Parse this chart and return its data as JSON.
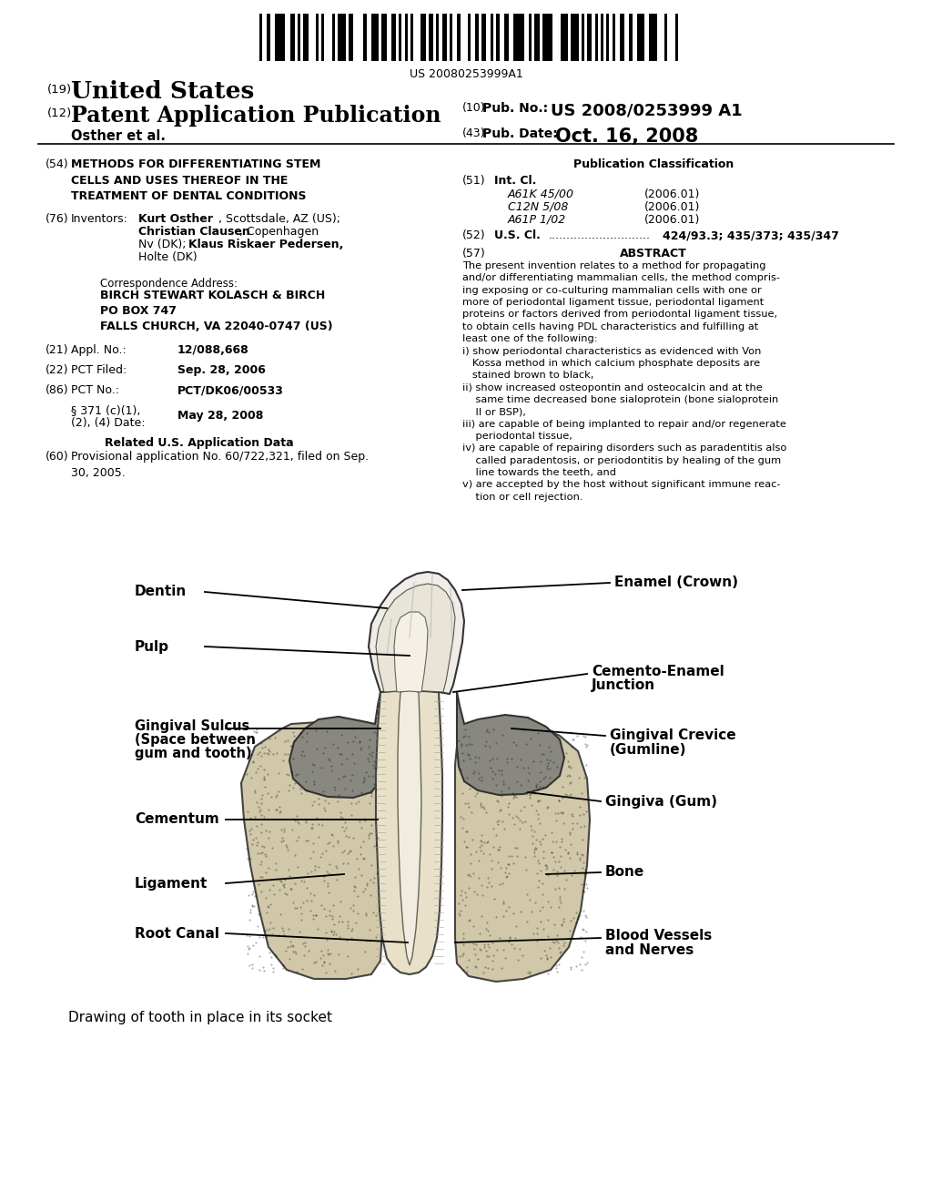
{
  "bg_color": "#ffffff",
  "barcode_text": "US 20080253999A1",
  "header": {
    "number_19": "(19)",
    "united_states": "United States",
    "number_12": "(12)",
    "pat_app_pub": "Patent Application Publication",
    "osther": "Osther et al.",
    "number_10": "(10)",
    "pub_no_label": "Pub. No.:",
    "pub_no_value": "US 2008/0253999 A1",
    "number_43": "(43)",
    "pub_date_label": "Pub. Date:",
    "pub_date_value": "Oct. 16, 2008"
  },
  "left_col": {
    "item54_num": "(54)",
    "item54_title": "METHODS FOR DIFFERENTIATING STEM\nCELLS AND USES THEREOF IN THE\nTREATMENT OF DENTAL CONDITIONS",
    "item76_num": "(76)",
    "item76_label": "Inventors:",
    "item76_bold": "Kurt Osther",
    "item76_text1": ", Scottsdale, AZ (US);",
    "item76_bold2": "Christian Clausen",
    "item76_text2": ", Copenhagen",
    "item76_text3": "Nv (DK);",
    "item76_bold3": "Klaus Riskaer Pedersen,",
    "item76_text4": "Holte (DK)",
    "corr_label": "Correspondence Address:",
    "corr_text": "BIRCH STEWART KOLASCH & BIRCH\nPO BOX 747\nFALLS CHURCH, VA 22040-0747 (US)",
    "item21_num": "(21)",
    "item21_label": "Appl. No.:",
    "item21_value": "12/088,668",
    "item22_num": "(22)",
    "item22_label": "PCT Filed:",
    "item22_value": "Sep. 28, 2006",
    "item86_num": "(86)",
    "item86_label": "PCT No.:",
    "item86_value": "PCT/DK06/00533",
    "item371_label1": "§ 371 (c)(1),",
    "item371_label2": "(2), (4) Date:",
    "item371_value": "May 28, 2008",
    "related_title": "Related U.S. Application Data",
    "item60_num": "(60)",
    "item60_text": "Provisional application No. 60/722,321, filed on Sep.\n30, 2005."
  },
  "right_col": {
    "pub_class_title": "Publication Classification",
    "item51_num": "(51)",
    "item51_label": "Int. Cl.",
    "item51_classes": [
      [
        "A61K 45/00",
        "(2006.01)"
      ],
      [
        "C12N 5/08",
        "(2006.01)"
      ],
      [
        "A61P 1/02",
        "(2006.01)"
      ]
    ],
    "item52_num": "(52)",
    "item52_label": "U.S. Cl.",
    "item52_dots": "............................",
    "item52_value": "424/93.3; 435/373; 435/347",
    "item57_num": "(57)",
    "abstract_title": "ABSTRACT",
    "abstract_text": "The present invention relates to a method for propagating\nand/or differentiating mammalian cells, the method compris-\ning exposing or co-culturing mammalian cells with one or\nmore of periodontal ligament tissue, periodontal ligament\nproteins or factors derived from periodontal ligament tissue,\nto obtain cells having PDL characteristics and fulfilling at\nleast one of the following:\ni) show periodontal characteristics as evidenced with Von\n   Kossa method in which calcium phosphate deposits are\n   stained brown to black,\nii) show increased osteopontin and osteocalcin and at the\n    same time decreased bone sialoprotein (bone sialoprotein\n    II or BSP),\niii) are capable of being implanted to repair and/or regenerate\n    periodontal tissue,\niv) are capable of repairing disorders such as paradentitis also\n    called paradentosis, or periodontitis by healing of the gum\n    line towards the teeth, and\nv) are accepted by the host without significant immune reac-\n    tion or cell rejection."
  },
  "diagram_caption": "Drawing of tooth in place in its socket"
}
